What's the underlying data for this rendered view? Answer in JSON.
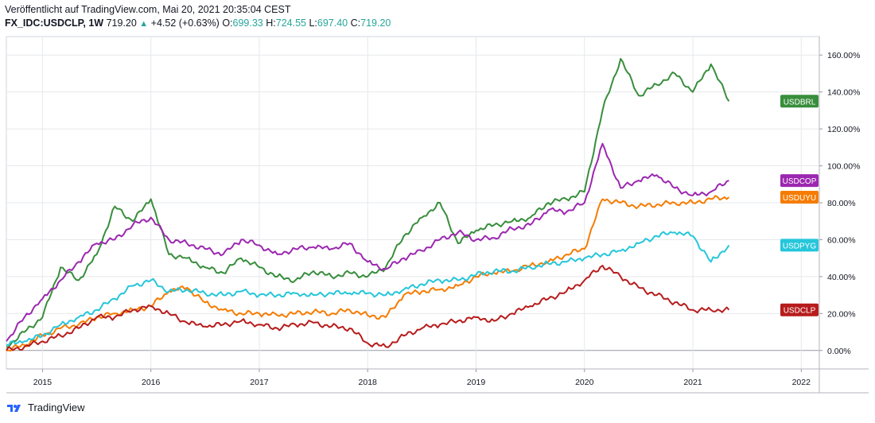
{
  "header": {
    "published": "Veröffentlicht auf TradingView.com, Mai 20, 2021 20:35:04 CEST",
    "symbol": "FX_IDC:USDCLP, 1W",
    "last": "719.20",
    "change": "+4.52 (+0.63%)",
    "o_label": "O:",
    "o_value": "699.33",
    "h_label": "H:",
    "h_value": "724.55",
    "l_label": "L:",
    "l_value": "697.40",
    "c_label": "C:",
    "c_value": "719.20"
  },
  "footer": {
    "brand": "TradingView",
    "logo_icon": "tradingview-logo-icon"
  },
  "colors": {
    "up": "#26a69a",
    "grid": "#e6e8ec",
    "axis": "#131722"
  },
  "chart_data": {
    "type": "line",
    "x_axis": {
      "ticks": [
        "2015",
        "2016",
        "2017",
        "2018",
        "2019",
        "2020",
        "2021",
        "2022"
      ],
      "range": [
        "2014-09",
        "2022-03"
      ]
    },
    "y_axis": {
      "unit": "%",
      "ticks": [
        "0.00%",
        "20.00%",
        "40.00%",
        "60.00%",
        "80.00%",
        "100.00%",
        "120.00%",
        "140.00%",
        "160.00%"
      ],
      "range": [
        -10,
        170
      ],
      "position": "right"
    },
    "grid": true,
    "legend": "right-side labels",
    "series": [
      {
        "name": "USDBRL",
        "color": "#388e3c",
        "x": [
          "2014-09",
          "2014-11",
          "2015-01",
          "2015-03",
          "2015-05",
          "2015-07",
          "2015-09",
          "2015-11",
          "2016-01",
          "2016-03",
          "2016-05",
          "2016-07",
          "2016-09",
          "2016-11",
          "2017-01",
          "2017-03",
          "2017-05",
          "2017-07",
          "2017-09",
          "2017-11",
          "2018-01",
          "2018-03",
          "2018-05",
          "2018-07",
          "2018-09",
          "2018-11",
          "2019-01",
          "2019-03",
          "2019-05",
          "2019-07",
          "2019-09",
          "2019-11",
          "2020-01",
          "2020-03",
          "2020-05",
          "2020-07",
          "2020-09",
          "2020-11",
          "2021-01",
          "2021-03",
          "2021-05"
        ],
        "values": [
          2,
          10,
          18,
          45,
          38,
          52,
          78,
          70,
          82,
          52,
          50,
          45,
          42,
          50,
          45,
          40,
          38,
          43,
          40,
          42,
          40,
          45,
          62,
          72,
          80,
          58,
          65,
          68,
          70,
          72,
          80,
          82,
          86,
          130,
          158,
          138,
          144,
          150,
          140,
          155,
          135
        ]
      },
      {
        "name": "USDCOP",
        "color": "#9c27b0",
        "x": [
          "2014-09",
          "2014-11",
          "2015-01",
          "2015-03",
          "2015-05",
          "2015-07",
          "2015-09",
          "2015-11",
          "2016-01",
          "2016-03",
          "2016-05",
          "2016-07",
          "2016-09",
          "2016-11",
          "2017-01",
          "2017-03",
          "2017-05",
          "2017-07",
          "2017-09",
          "2017-11",
          "2018-01",
          "2018-03",
          "2018-05",
          "2018-07",
          "2018-09",
          "2018-11",
          "2019-01",
          "2019-03",
          "2019-05",
          "2019-07",
          "2019-09",
          "2019-11",
          "2020-01",
          "2020-03",
          "2020-05",
          "2020-07",
          "2020-09",
          "2020-11",
          "2021-01",
          "2021-03",
          "2021-05"
        ],
        "values": [
          5,
          18,
          28,
          38,
          48,
          58,
          60,
          68,
          72,
          60,
          58,
          55,
          52,
          60,
          57,
          52,
          55,
          56,
          55,
          58,
          48,
          44,
          50,
          54,
          60,
          64,
          60,
          61,
          66,
          68,
          76,
          75,
          80,
          112,
          88,
          92,
          95,
          88,
          84,
          86,
          92
        ]
      },
      {
        "name": "USDUYU",
        "color": "#f57c00",
        "x": [
          "2014-09",
          "2014-11",
          "2015-01",
          "2015-03",
          "2015-05",
          "2015-07",
          "2015-09",
          "2015-11",
          "2016-01",
          "2016-03",
          "2016-05",
          "2016-07",
          "2016-09",
          "2016-11",
          "2017-01",
          "2017-03",
          "2017-05",
          "2017-07",
          "2017-09",
          "2017-11",
          "2018-01",
          "2018-03",
          "2018-05",
          "2018-07",
          "2018-09",
          "2018-11",
          "2019-01",
          "2019-03",
          "2019-05",
          "2019-07",
          "2019-09",
          "2019-11",
          "2020-01",
          "2020-03",
          "2020-05",
          "2020-07",
          "2020-09",
          "2020-11",
          "2021-01",
          "2021-03",
          "2021-05"
        ],
        "values": [
          0,
          3,
          8,
          12,
          14,
          18,
          20,
          22,
          24,
          32,
          34,
          26,
          22,
          20,
          20,
          19,
          20,
          21,
          20,
          22,
          19,
          18,
          30,
          32,
          33,
          35,
          40,
          42,
          43,
          46,
          48,
          52,
          55,
          82,
          80,
          78,
          79,
          80,
          80,
          82,
          83
        ]
      },
      {
        "name": "USDPYG",
        "color": "#26c6da",
        "x": [
          "2014-09",
          "2014-11",
          "2015-01",
          "2015-03",
          "2015-05",
          "2015-07",
          "2015-09",
          "2015-11",
          "2016-01",
          "2016-03",
          "2016-05",
          "2016-07",
          "2016-09",
          "2016-11",
          "2017-01",
          "2017-03",
          "2017-05",
          "2017-07",
          "2017-09",
          "2017-11",
          "2018-01",
          "2018-03",
          "2018-05",
          "2018-07",
          "2018-09",
          "2018-11",
          "2019-01",
          "2019-03",
          "2019-05",
          "2019-07",
          "2019-09",
          "2019-11",
          "2020-01",
          "2020-03",
          "2020-05",
          "2020-07",
          "2020-09",
          "2020-11",
          "2021-01",
          "2021-03",
          "2021-05"
        ],
        "values": [
          3,
          5,
          8,
          14,
          18,
          22,
          28,
          35,
          38,
          32,
          33,
          31,
          30,
          32,
          30,
          30,
          31,
          30,
          31,
          31,
          31,
          30,
          33,
          36,
          38,
          38,
          41,
          43,
          43,
          45,
          47,
          48,
          50,
          52,
          54,
          58,
          62,
          64,
          62,
          48,
          57
        ]
      },
      {
        "name": "USDCLP",
        "color": "#b71c1c",
        "x": [
          "2014-09",
          "2014-11",
          "2015-01",
          "2015-03",
          "2015-05",
          "2015-07",
          "2015-09",
          "2015-11",
          "2016-01",
          "2016-03",
          "2016-05",
          "2016-07",
          "2016-09",
          "2016-11",
          "2017-01",
          "2017-03",
          "2017-05",
          "2017-07",
          "2017-09",
          "2017-11",
          "2018-01",
          "2018-03",
          "2018-05",
          "2018-07",
          "2018-09",
          "2018-11",
          "2019-01",
          "2019-03",
          "2019-05",
          "2019-07",
          "2019-09",
          "2019-11",
          "2020-01",
          "2020-03",
          "2020-05",
          "2020-07",
          "2020-09",
          "2020-11",
          "2021-01",
          "2021-03",
          "2021-05"
        ],
        "values": [
          0,
          2,
          5,
          8,
          12,
          18,
          18,
          22,
          24,
          20,
          15,
          13,
          14,
          16,
          14,
          12,
          14,
          15,
          13,
          12,
          4,
          2,
          8,
          12,
          14,
          16,
          18,
          16,
          20,
          24,
          28,
          32,
          38,
          46,
          40,
          34,
          30,
          26,
          22,
          22,
          22
        ]
      }
    ]
  }
}
